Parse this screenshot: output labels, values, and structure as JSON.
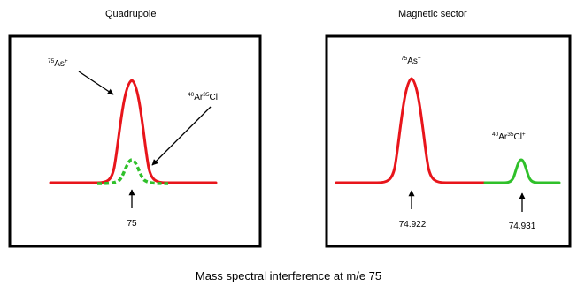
{
  "panels": {
    "left": {
      "title": "Quadrupole",
      "peak_main": {
        "mass_number": "75",
        "element": "As",
        "charge": "+"
      },
      "peak_interference": {
        "mass_a": "40",
        "element_a": "Ar",
        "mass_b": "35",
        "element_b": "Cl",
        "charge": "+"
      },
      "axis_label": "75"
    },
    "right": {
      "title": "Magnetic sector",
      "peak_main": {
        "mass_number": "75",
        "element": "As",
        "charge": "+"
      },
      "peak_interference": {
        "mass_a": "40",
        "element_a": "Ar",
        "mass_b": "35",
        "element_b": "Cl",
        "charge": "+"
      },
      "axis_label_main": "74.922",
      "axis_label_interference": "74.931"
    }
  },
  "caption": "Mass spectral interference at m/e 75",
  "colors": {
    "main_peak": "#e8151b",
    "interference_peak": "#2fc02a",
    "frame": "#000000"
  }
}
